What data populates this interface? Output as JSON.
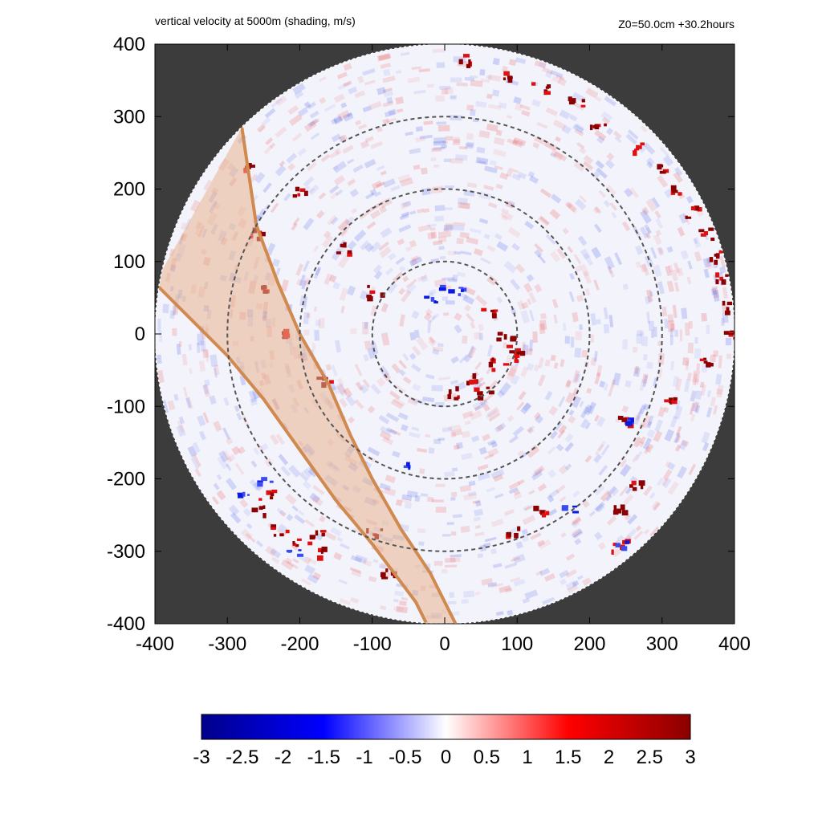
{
  "chart_data": {
    "type": "heatmap",
    "title": "vertical velocity at 5000m (shading, m/s)",
    "subtitle": "Z0=50.0cm  +30.2hours",
    "xlim": [
      -400,
      400
    ],
    "ylim": [
      -400,
      400
    ],
    "x_ticks": [
      -400,
      -300,
      -200,
      -100,
      0,
      100,
      200,
      300,
      400
    ],
    "y_ticks": [
      -400,
      -300,
      -200,
      -100,
      0,
      100,
      200,
      300,
      400
    ],
    "x_tick_labels": [
      "-400",
      "-300",
      "-200",
      "-100",
      "0",
      "100",
      "200",
      "300",
      "400"
    ],
    "y_tick_labels": [
      "-400",
      "-300",
      "-200",
      "-100",
      "0",
      "100",
      "200",
      "300",
      "400"
    ],
    "domain_radius": 400,
    "range_rings": [
      100,
      200,
      300
    ],
    "colorbar": {
      "min": -3,
      "max": 3,
      "ticks": [
        -3,
        -2.5,
        -2,
        -1.5,
        -1,
        -0.5,
        0,
        0.5,
        1,
        1.5,
        2,
        2.5,
        3
      ],
      "tick_labels": [
        "-3",
        "-2.5",
        "-2",
        "-1.5",
        "-1",
        "-0.5",
        "0",
        "0.5",
        "1",
        "1.5",
        "2",
        "2.5",
        "3"
      ],
      "colors": [
        "#00008b",
        "#0000ff",
        "#ffffff",
        "#ff0000",
        "#8b0000"
      ]
    },
    "swath": {
      "color": "#d08a50",
      "fill": "#e8b38e",
      "left_edge": [
        [
          -280,
          285
        ],
        [
          -260,
          150
        ],
        [
          -230,
          70
        ],
        [
          -200,
          0
        ],
        [
          -160,
          -70
        ],
        [
          -130,
          -140
        ],
        [
          -100,
          -200
        ],
        [
          -60,
          -270
        ],
        [
          -20,
          -330
        ],
        [
          15,
          -400
        ]
      ],
      "right_edge": [
        [
          -400,
          70
        ],
        [
          -350,
          20
        ],
        [
          -300,
          -30
        ],
        [
          -250,
          -90
        ],
        [
          -200,
          -160
        ],
        [
          -150,
          -230
        ],
        [
          -100,
          -290
        ],
        [
          -70,
          -330
        ],
        [
          -40,
          -370
        ],
        [
          -25,
          -400
        ]
      ]
    },
    "features": {
      "updrafts_red": [
        [
          30,
          380
        ],
        [
          80,
          360
        ],
        [
          130,
          340
        ],
        [
          180,
          320
        ],
        [
          210,
          290
        ],
        [
          270,
          260
        ],
        [
          300,
          230
        ],
        [
          320,
          200
        ],
        [
          340,
          170
        ],
        [
          360,
          140
        ],
        [
          370,
          110
        ],
        [
          380,
          80
        ],
        [
          390,
          40
        ],
        [
          395,
          0
        ],
        [
          360,
          -40
        ],
        [
          310,
          -90
        ],
        [
          250,
          -120
        ],
        [
          260,
          -210
        ],
        [
          240,
          -240
        ],
        [
          240,
          -290
        ],
        [
          130,
          -240
        ],
        [
          90,
          -270
        ],
        [
          60,
          30
        ],
        [
          80,
          0
        ],
        [
          90,
          -20
        ],
        [
          70,
          -40
        ],
        [
          30,
          -60
        ],
        [
          10,
          -80
        ],
        [
          50,
          -80
        ],
        [
          100,
          -30
        ],
        [
          -250,
          -220
        ],
        [
          -260,
          -240
        ],
        [
          -230,
          -270
        ],
        [
          -200,
          -290
        ],
        [
          -180,
          -270
        ],
        [
          -170,
          -300
        ],
        [
          -100,
          -270
        ],
        [
          -80,
          -330
        ],
        [
          -200,
          200
        ],
        [
          -280,
          230
        ],
        [
          -260,
          140
        ],
        [
          -250,
          60
        ],
        [
          -220,
          0
        ],
        [
          -140,
          120
        ],
        [
          -100,
          60
        ],
        [
          -170,
          -60
        ]
      ],
      "downdrafts_blue": [
        [
          0,
          65
        ],
        [
          20,
          60
        ],
        [
          -20,
          50
        ],
        [
          170,
          -240
        ],
        [
          250,
          -120
        ],
        [
          240,
          -290
        ],
        [
          -280,
          -220
        ],
        [
          -250,
          -200
        ],
        [
          -210,
          -300
        ],
        [
          -50,
          -180
        ]
      ]
    }
  }
}
